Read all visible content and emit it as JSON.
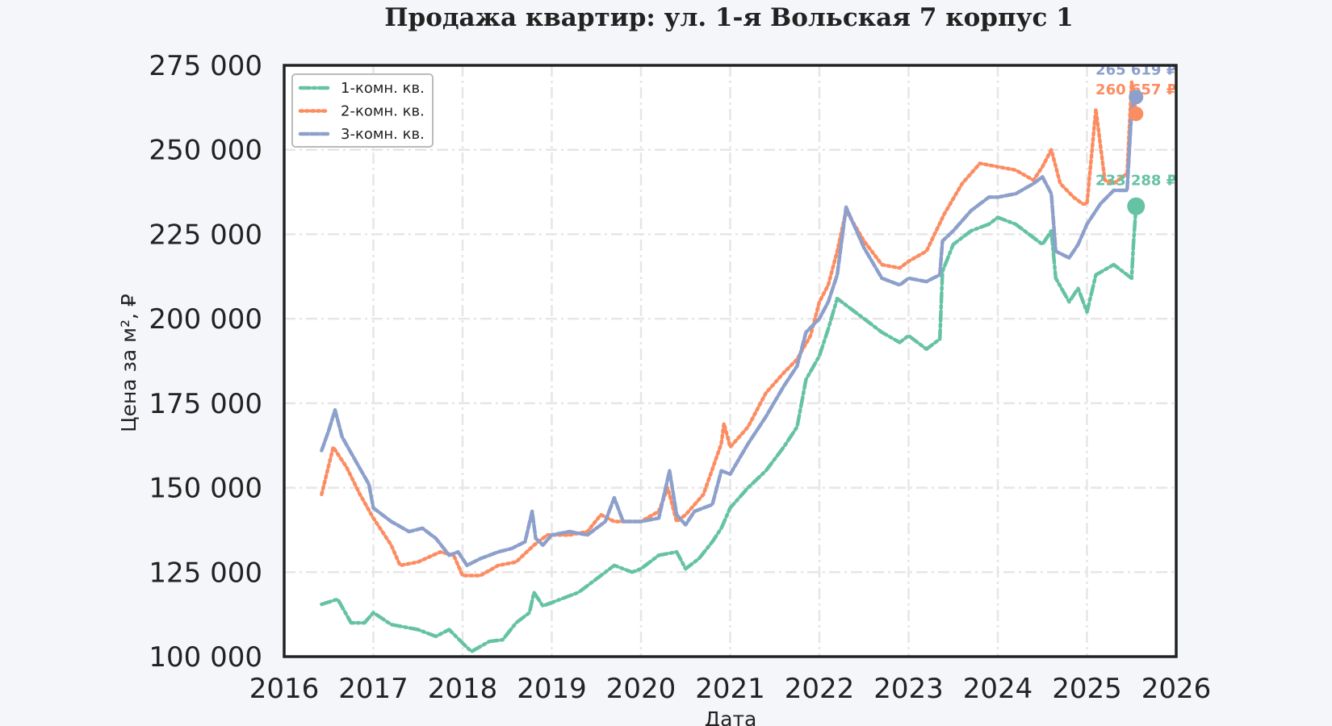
{
  "chart_data": {
    "type": "line",
    "title": "Продажа квартир: ул. 1-я Вольская 7 корпус 1",
    "xlabel": "Дата",
    "ylabel": "Цена за м², ₽",
    "xlim": [
      2016,
      2026
    ],
    "ylim": [
      100000,
      275000
    ],
    "x_ticks": [
      2016,
      2017,
      2018,
      2019,
      2020,
      2021,
      2022,
      2023,
      2024,
      2025,
      2026
    ],
    "x_tick_labels": [
      "2016",
      "2017",
      "2018",
      "2019",
      "2020",
      "2021",
      "2022",
      "2023",
      "2024",
      "2025",
      "2026"
    ],
    "y_ticks": [
      100000,
      125000,
      150000,
      175000,
      200000,
      225000,
      250000,
      275000
    ],
    "y_tick_labels": [
      "100 000",
      "125 000",
      "150 000",
      "175 000",
      "200 000",
      "225 000",
      "250 000",
      "275 000"
    ],
    "grid": true,
    "legend_position": "top-left",
    "series": [
      {
        "name": "1-комн. кв.",
        "color": "#66c2a5",
        "style": "dash-dot",
        "x": [
          2016.42,
          2016.6,
          2016.75,
          2016.9,
          2017.0,
          2017.2,
          2017.5,
          2017.7,
          2017.85,
          2018.0,
          2018.1,
          2018.3,
          2018.45,
          2018.6,
          2018.75,
          2018.8,
          2018.9,
          2019.0,
          2019.3,
          2019.5,
          2019.7,
          2019.9,
          2020.0,
          2020.2,
          2020.4,
          2020.5,
          2020.65,
          2020.8,
          2020.9,
          2021.0,
          2021.2,
          2021.4,
          2021.6,
          2021.75,
          2021.85,
          2022.0,
          2022.1,
          2022.2,
          2022.35,
          2022.5,
          2022.7,
          2022.9,
          2023.0,
          2023.2,
          2023.35,
          2023.38,
          2023.5,
          2023.7,
          2023.9,
          2024.0,
          2024.2,
          2024.35,
          2024.5,
          2024.6,
          2024.65,
          2024.8,
          2024.9,
          2025.0,
          2025.1,
          2025.3,
          2025.5,
          2025.52,
          2025.55
        ],
        "y": [
          115500,
          117000,
          110000,
          110000,
          113000,
          109500,
          108000,
          106000,
          108000,
          104000,
          101500,
          104500,
          105000,
          110000,
          113000,
          119000,
          115000,
          116000,
          119000,
          123000,
          127000,
          125000,
          126000,
          130000,
          131000,
          126000,
          129000,
          134000,
          138000,
          144000,
          150000,
          155000,
          162000,
          168000,
          182000,
          189000,
          197000,
          206000,
          203000,
          200000,
          196000,
          193000,
          195000,
          191000,
          194000,
          214000,
          222000,
          226000,
          228000,
          230000,
          228000,
          225000,
          222000,
          226000,
          212000,
          205000,
          209000,
          202000,
          213000,
          216000,
          212000,
          222000,
          233288
        ]
      },
      {
        "name": "2-комн. кв.",
        "color": "#fc8d62",
        "style": "dotted",
        "x": [
          2016.42,
          2016.55,
          2016.7,
          2016.85,
          2017.0,
          2017.2,
          2017.3,
          2017.5,
          2017.75,
          2017.9,
          2018.0,
          2018.2,
          2018.4,
          2018.6,
          2018.8,
          2018.95,
          2019.2,
          2019.4,
          2019.55,
          2019.7,
          2019.8,
          2020.0,
          2020.2,
          2020.3,
          2020.4,
          2020.5,
          2020.7,
          2020.9,
          2020.93,
          2021.0,
          2021.2,
          2021.4,
          2021.6,
          2021.75,
          2021.9,
          2022.0,
          2022.1,
          2022.2,
          2022.3,
          2022.5,
          2022.7,
          2022.9,
          2023.0,
          2023.2,
          2023.4,
          2023.6,
          2023.8,
          2024.0,
          2024.2,
          2024.4,
          2024.5,
          2024.6,
          2024.7,
          2024.85,
          2024.95,
          2025.0,
          2025.1,
          2025.2,
          2025.3,
          2025.45,
          2025.5,
          2025.55
        ],
        "y": [
          148000,
          162000,
          156000,
          148000,
          141000,
          133000,
          127000,
          128000,
          131000,
          130000,
          124000,
          124000,
          127000,
          128000,
          133000,
          136000,
          136000,
          137000,
          142000,
          140000,
          140000,
          140000,
          143000,
          150000,
          140000,
          142000,
          148000,
          163000,
          169000,
          162000,
          168000,
          178000,
          184000,
          188000,
          195000,
          205000,
          210000,
          220000,
          232000,
          223000,
          216000,
          215000,
          217000,
          220000,
          231000,
          240000,
          246000,
          245000,
          244000,
          241000,
          245000,
          250000,
          240000,
          236000,
          234000,
          234000,
          262000,
          241000,
          240000,
          243000,
          270000,
          260657
        ]
      },
      {
        "name": "3-комн. кв.",
        "color": "#8da0cb",
        "style": "dashed",
        "x": [
          2016.42,
          2016.5,
          2016.57,
          2016.65,
          2016.8,
          2016.95,
          2017.0,
          2017.2,
          2017.4,
          2017.55,
          2017.7,
          2017.85,
          2017.95,
          2018.05,
          2018.2,
          2018.4,
          2018.55,
          2018.7,
          2018.78,
          2018.82,
          2018.9,
          2019.0,
          2019.2,
          2019.4,
          2019.6,
          2019.7,
          2019.8,
          2020.0,
          2020.2,
          2020.32,
          2020.4,
          2020.5,
          2020.6,
          2020.8,
          2020.9,
          2021.0,
          2021.2,
          2021.4,
          2021.6,
          2021.75,
          2021.85,
          2022.0,
          2022.1,
          2022.2,
          2022.3,
          2022.5,
          2022.7,
          2022.9,
          2023.0,
          2023.2,
          2023.35,
          2023.38,
          2023.5,
          2023.7,
          2023.9,
          2024.0,
          2024.2,
          2024.4,
          2024.5,
          2024.6,
          2024.65,
          2024.8,
          2024.9,
          2025.0,
          2025.15,
          2025.3,
          2025.45,
          2025.5,
          2025.55
        ],
        "y": [
          161000,
          167000,
          173000,
          165000,
          158000,
          151000,
          144000,
          140000,
          137000,
          138000,
          135000,
          130000,
          131000,
          127000,
          129000,
          131000,
          132000,
          134000,
          143000,
          135000,
          133000,
          136000,
          137000,
          136000,
          140000,
          147000,
          140000,
          140000,
          141000,
          155000,
          142000,
          139000,
          143000,
          145000,
          155000,
          154000,
          163000,
          171000,
          180000,
          186000,
          196000,
          200000,
          205000,
          213000,
          233000,
          221000,
          212000,
          210000,
          212000,
          211000,
          213000,
          223000,
          226000,
          232000,
          236000,
          236000,
          237000,
          240000,
          242000,
          237000,
          220000,
          218000,
          222000,
          228000,
          234000,
          238000,
          238000,
          262000,
          265619
        ]
      }
    ],
    "end_labels": [
      "233 288 ₽",
      "260 657 ₽",
      "265 619 ₽"
    ]
  }
}
